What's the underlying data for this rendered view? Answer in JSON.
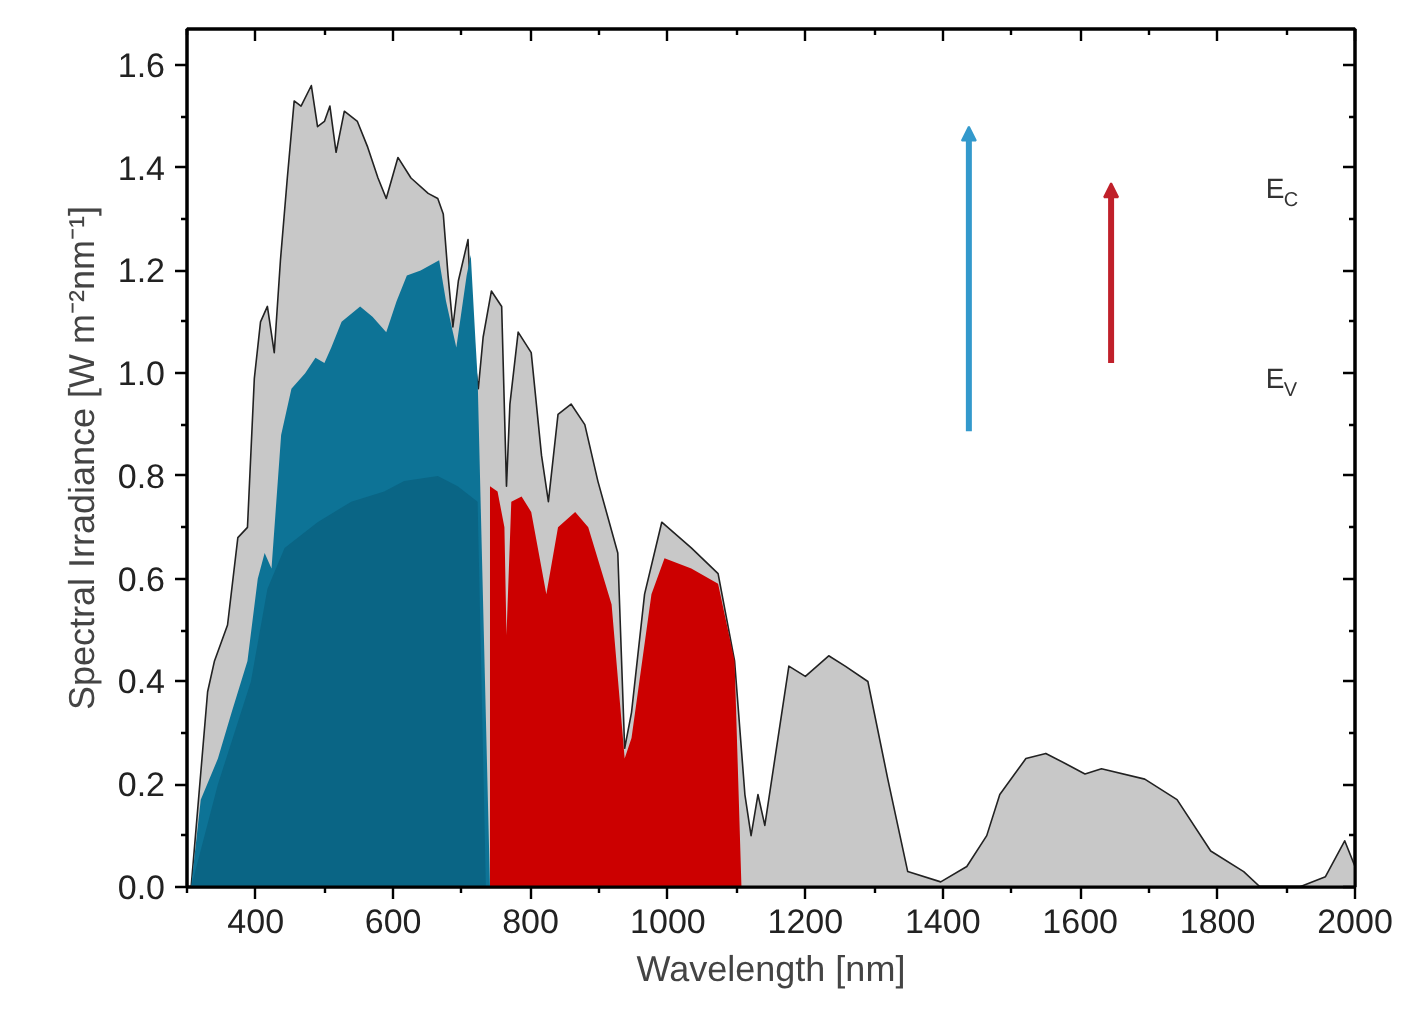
{
  "chart_data": {
    "type": "area",
    "xlabel": "Wavelength [nm]",
    "ylabel": "Spectral Irradiance [W m⁻²nm⁻¹]",
    "xlim": [
      300,
      2000
    ],
    "ylim": [
      0,
      1.67
    ],
    "xticks": [
      {
        "value": 300,
        "label": null
      },
      400,
      {
        "value": 500,
        "label": null
      },
      600,
      {
        "value": 700,
        "label": null
      },
      800,
      {
        "value": 900,
        "label": null
      },
      1000,
      {
        "value": 1100,
        "label": null
      },
      1200,
      {
        "value": 1300,
        "label": null
      },
      1400,
      {
        "value": 1500,
        "label": null
      },
      1600,
      {
        "value": 1700,
        "label": null
      },
      1800,
      {
        "value": 1900,
        "label": null
      },
      2000
    ],
    "yticks": [
      {
        "value": 0,
        "label": "0.0"
      },
      {
        "value": 0.1,
        "label": null
      },
      0.2,
      {
        "value": 0.3,
        "label": null
      },
      0.4,
      {
        "value": 0.5,
        "label": null
      },
      0.6,
      {
        "value": 0.7,
        "label": null
      },
      0.8,
      {
        "value": 0.9,
        "label": null
      },
      {
        "value": 1.0,
        "label": "1.0"
      },
      {
        "value": 1.1,
        "label": null
      },
      1.2,
      {
        "value": 1.3,
        "label": null
      },
      1.4,
      {
        "value": 1.5,
        "label": null
      },
      1.6
    ],
    "grid": false,
    "annotations": [
      "E$_{C}$",
      "E$_{V}$"
    ],
    "series": [
      {
        "color": "#c8c8c8",
        "x": [
          306,
          330,
          340,
          359,
          374,
          388,
          398,
          407,
          417,
          427,
          436,
          446,
          456,
          466,
          481,
          490,
          500,
          508,
          517,
          529,
          548,
          563,
          578,
          590,
          607,
          626,
          651,
          665,
          673,
          680,
          687,
          695,
          709,
          716,
          724,
          731,
          743,
          758,
          765,
          770,
          782,
          801,
          816,
          826,
          840,
          859,
          879,
          898,
          927,
          937,
          947,
          966,
          991,
          1034,
          1073,
          1097,
          1112,
          1121,
          1131,
          1141,
          1176,
          1200,
          1234,
          1258,
          1291,
          1320,
          1349,
          1397,
          1435,
          1464,
          1483,
          1521,
          1550,
          1579,
          1607,
          1631,
          1694,
          1741,
          1790,
          1838,
          1862,
          1919,
          1957,
          1985,
          2000
        ],
        "values": [
          0,
          0.38,
          0.44,
          0.51,
          0.68,
          0.7,
          0.99,
          1.1,
          1.13,
          1.04,
          1.22,
          1.38,
          1.53,
          1.52,
          1.56,
          1.48,
          1.49,
          1.52,
          1.43,
          1.51,
          1.49,
          1.44,
          1.38,
          1.34,
          1.42,
          1.38,
          1.35,
          1.34,
          1.31,
          1.19,
          1.09,
          1.18,
          1.26,
          1.05,
          0.97,
          1.07,
          1.16,
          1.13,
          0.78,
          0.94,
          1.08,
          1.04,
          0.84,
          0.75,
          0.92,
          0.94,
          0.9,
          0.79,
          0.65,
          0.27,
          0.34,
          0.57,
          0.71,
          0.66,
          0.61,
          0.44,
          0.18,
          0.1,
          0.18,
          0.12,
          0.43,
          0.41,
          0.45,
          0.43,
          0.4,
          0.21,
          0.03,
          0.01,
          0.04,
          0.1,
          0.18,
          0.25,
          0.26,
          0.24,
          0.22,
          0.23,
          0.21,
          0.17,
          0.07,
          0.03,
          0,
          0,
          0.02,
          0.09,
          0.04
        ]
      },
      {
        "color": "#0d7396",
        "x": [
          306,
          320,
          345,
          365,
          388,
          403,
          413,
          423,
          437,
          452,
          472,
          487,
          500,
          510,
          525,
          552,
          570,
          590,
          605,
          620,
          640,
          667,
          677,
          692,
          707,
          713,
          720,
          723,
          741
        ],
        "values": [
          0,
          0.17,
          0.25,
          0.34,
          0.44,
          0.6,
          0.65,
          0.62,
          0.88,
          0.97,
          1.0,
          1.03,
          1.02,
          1.05,
          1.1,
          1.13,
          1.11,
          1.08,
          1.14,
          1.19,
          1.2,
          1.22,
          1.14,
          1.05,
          1.19,
          1.23,
          1.06,
          0.99,
          0
        ]
      },
      {
        "color": "#0a6585",
        "x": [
          306,
          345,
          393,
          417,
          442,
          490,
          539,
          587,
          616,
          665,
          694,
          723,
          735
        ],
        "values": [
          0,
          0.2,
          0.4,
          0.58,
          0.66,
          0.71,
          0.75,
          0.77,
          0.79,
          0.8,
          0.78,
          0.75,
          0
        ]
      },
      {
        "color": "#cc0000",
        "x": [
          741,
          752,
          762,
          765,
          772,
          787,
          801,
          823,
          840,
          865,
          884,
          918,
          937,
          947,
          976,
          995,
          1034,
          1073,
          1097,
          1107
        ],
        "values": [
          0.78,
          0.77,
          0.7,
          0.49,
          0.75,
          0.76,
          0.73,
          0.57,
          0.7,
          0.73,
          0.7,
          0.55,
          0.25,
          0.29,
          0.57,
          0.64,
          0.62,
          0.59,
          0.44,
          0
        ]
      }
    ]
  }
}
